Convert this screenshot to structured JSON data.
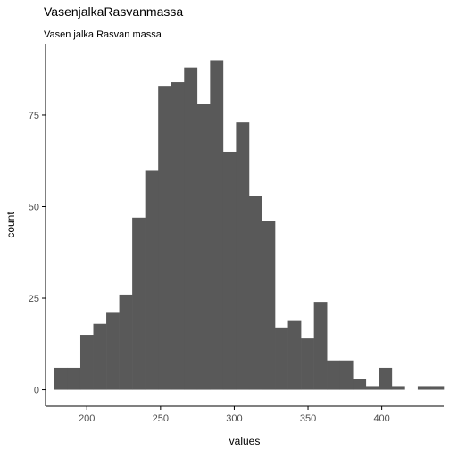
{
  "chart_data": {
    "type": "bar",
    "title": "VasenjalkaRasvanmassa",
    "subtitle": "Vasen jalka Rasvan massa",
    "xlabel": "values",
    "ylabel": "count",
    "xlim": [
      172,
      442
    ],
    "ylim": [
      -4.5,
      94.5
    ],
    "x_ticks": [
      200,
      250,
      300,
      350,
      400
    ],
    "y_ticks": [
      0,
      25,
      50,
      75
    ],
    "grid": false,
    "bar_color": "#595959",
    "bins": [
      {
        "x0": 178,
        "x1": 186.8,
        "count": 6
      },
      {
        "x0": 186.8,
        "x1": 195.6,
        "count": 6
      },
      {
        "x0": 195.6,
        "x1": 204.4,
        "count": 15
      },
      {
        "x0": 204.4,
        "x1": 213.2,
        "count": 18
      },
      {
        "x0": 213.2,
        "x1": 222.0,
        "count": 21
      },
      {
        "x0": 222.0,
        "x1": 230.8,
        "count": 26
      },
      {
        "x0": 230.8,
        "x1": 239.6,
        "count": 47
      },
      {
        "x0": 239.6,
        "x1": 248.4,
        "count": 60
      },
      {
        "x0": 248.4,
        "x1": 257.2,
        "count": 83
      },
      {
        "x0": 257.2,
        "x1": 266.0,
        "count": 84
      },
      {
        "x0": 266.0,
        "x1": 274.8,
        "count": 88
      },
      {
        "x0": 274.8,
        "x1": 283.6,
        "count": 78
      },
      {
        "x0": 283.6,
        "x1": 292.4,
        "count": 90
      },
      {
        "x0": 292.4,
        "x1": 301.2,
        "count": 65
      },
      {
        "x0": 301.2,
        "x1": 310.0,
        "count": 73
      },
      {
        "x0": 310.0,
        "x1": 318.8,
        "count": 53
      },
      {
        "x0": 318.8,
        "x1": 327.6,
        "count": 46
      },
      {
        "x0": 327.6,
        "x1": 336.4,
        "count": 17
      },
      {
        "x0": 336.4,
        "x1": 345.2,
        "count": 19
      },
      {
        "x0": 345.2,
        "x1": 354.0,
        "count": 14
      },
      {
        "x0": 354.0,
        "x1": 362.8,
        "count": 24
      },
      {
        "x0": 362.8,
        "x1": 371.6,
        "count": 8
      },
      {
        "x0": 371.6,
        "x1": 380.4,
        "count": 8
      },
      {
        "x0": 380.4,
        "x1": 389.2,
        "count": 3
      },
      {
        "x0": 389.2,
        "x1": 398.0,
        "count": 1
      },
      {
        "x0": 398.0,
        "x1": 406.8,
        "count": 6
      },
      {
        "x0": 406.8,
        "x1": 415.6,
        "count": 1
      },
      {
        "x0": 415.6,
        "x1": 424.4,
        "count": 0
      },
      {
        "x0": 424.4,
        "x1": 433.2,
        "count": 1
      },
      {
        "x0": 433.2,
        "x1": 442.0,
        "count": 1
      }
    ]
  }
}
